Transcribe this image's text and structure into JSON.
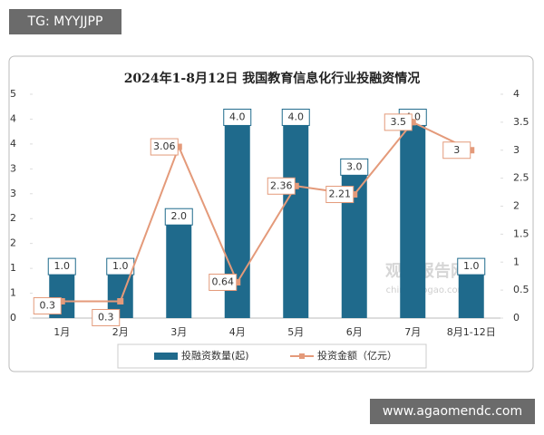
{
  "overlay": {
    "tag": "TG: MYYJJPP",
    "site": "www.agaomendc.com"
  },
  "chart_data": {
    "type": "bar",
    "title": "2024年1-8月12日 我国教育信息化行业投融资情况",
    "watermark": [
      "观研报告网",
      "chinabaogao.com"
    ],
    "categories": [
      "1月",
      "2月",
      "3月",
      "4月",
      "5月",
      "6月",
      "7月",
      "8月1-12日"
    ],
    "series": [
      {
        "name": "投融资数量(起)",
        "type": "bar",
        "color": "#1f6a8c",
        "values": [
          1,
          1,
          2,
          4,
          4,
          3,
          4,
          1
        ],
        "value_labels": [
          "1.0",
          "1.0",
          "2.0",
          "4.0",
          "4.0",
          "3.0",
          "4.0",
          "1.0"
        ]
      },
      {
        "name": "投资金额（亿元）",
        "type": "line",
        "axis": "y2",
        "color": "#e49a7a",
        "values": [
          0.3,
          0.3,
          3.06,
          0.64,
          2.36,
          2.21,
          3.5,
          3
        ]
      }
    ],
    "ylim": [
      0,
      4.5
    ],
    "yticks": [
      {
        "value": 0,
        "label": "0"
      },
      {
        "value": 0.5,
        "label": "1"
      },
      {
        "value": 1,
        "label": "1"
      },
      {
        "value": 1.5,
        "label": "2"
      },
      {
        "value": 2,
        "label": "2"
      },
      {
        "value": 2.5,
        "label": "3"
      },
      {
        "value": 3,
        "label": "3"
      },
      {
        "value": 3.5,
        "label": "4"
      },
      {
        "value": 4,
        "label": "4"
      },
      {
        "value": 4.5,
        "label": "5"
      }
    ],
    "y2lim": [
      0,
      4
    ],
    "y2ticks": [
      0,
      0.5,
      1,
      1.5,
      2,
      2.5,
      3,
      3.5,
      4
    ],
    "grid": false,
    "legend": "bottom"
  }
}
